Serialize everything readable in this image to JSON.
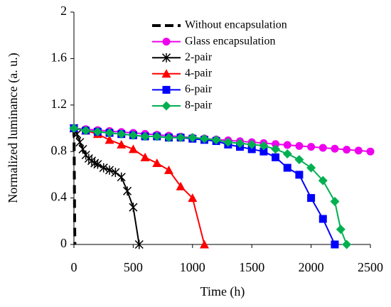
{
  "chart_data": {
    "type": "line",
    "xlabel": "Time (h)",
    "ylabel": "Normalized luminance (a. u.)",
    "xlim": [
      0,
      2500
    ],
    "xticks": [
      0,
      500,
      1000,
      1500,
      2000,
      2500
    ],
    "ylim": [
      0,
      2
    ],
    "yticks": [
      0,
      0.4,
      0.8,
      1.2,
      1.6,
      2
    ],
    "legend": "upper right",
    "series": [
      {
        "name": "Without encapsulation",
        "color": "#000000",
        "marker": "none",
        "dash": true,
        "x": [
          0,
          2,
          4,
          6,
          8
        ],
        "values": [
          1,
          0.8,
          0.5,
          0.2,
          0
        ]
      },
      {
        "name": "Glass encapsulation",
        "color": "#ee00ee",
        "marker": "circle",
        "x": [
          0,
          100,
          200,
          300,
          400,
          500,
          600,
          700,
          800,
          900,
          1000,
          1100,
          1200,
          1300,
          1400,
          1500,
          1600,
          1700,
          1800,
          1900,
          2000,
          2100,
          2200,
          2300,
          2400,
          2500
        ],
        "values": [
          1,
          0.992,
          0.984,
          0.976,
          0.968,
          0.96,
          0.952,
          0.944,
          0.936,
          0.928,
          0.92,
          0.912,
          0.904,
          0.896,
          0.888,
          0.88,
          0.872,
          0.864,
          0.856,
          0.848,
          0.84,
          0.832,
          0.824,
          0.816,
          0.808,
          0.8
        ]
      },
      {
        "name": "2-pair",
        "color": "#000000",
        "marker": "star",
        "x": [
          0,
          25,
          50,
          75,
          100,
          125,
          150,
          175,
          200,
          250,
          300,
          350,
          400,
          450,
          500,
          550
        ],
        "values": [
          1,
          0.95,
          0.88,
          0.82,
          0.77,
          0.74,
          0.72,
          0.7,
          0.69,
          0.66,
          0.64,
          0.62,
          0.58,
          0.46,
          0.32,
          0
        ]
      },
      {
        "name": "4-pair",
        "color": "#ff0000",
        "marker": "triangle",
        "x": [
          0,
          100,
          200,
          300,
          400,
          500,
          600,
          700,
          800,
          900,
          1000,
          1100
        ],
        "values": [
          1,
          0.98,
          0.95,
          0.9,
          0.86,
          0.82,
          0.75,
          0.7,
          0.64,
          0.5,
          0.4,
          0
        ]
      },
      {
        "name": "6-pair",
        "color": "#0000ff",
        "marker": "square",
        "x": [
          0,
          100,
          200,
          300,
          400,
          500,
          600,
          700,
          800,
          900,
          1000,
          1100,
          1200,
          1300,
          1400,
          1500,
          1600,
          1700,
          1800,
          1900,
          2000,
          2100,
          2200
        ],
        "values": [
          1,
          0.98,
          0.97,
          0.96,
          0.95,
          0.94,
          0.93,
          0.93,
          0.92,
          0.92,
          0.91,
          0.9,
          0.89,
          0.86,
          0.84,
          0.82,
          0.8,
          0.75,
          0.66,
          0.6,
          0.4,
          0.22,
          0
        ]
      },
      {
        "name": "8-pair",
        "color": "#00b050",
        "marker": "diamond",
        "x": [
          0,
          100,
          200,
          300,
          400,
          500,
          600,
          700,
          800,
          900,
          1000,
          1100,
          1200,
          1300,
          1400,
          1500,
          1600,
          1700,
          1800,
          1900,
          2000,
          2100,
          2200,
          2250,
          2300
        ],
        "values": [
          1,
          0.98,
          0.97,
          0.96,
          0.95,
          0.94,
          0.93,
          0.93,
          0.92,
          0.92,
          0.92,
          0.91,
          0.9,
          0.88,
          0.87,
          0.86,
          0.85,
          0.82,
          0.78,
          0.73,
          0.66,
          0.55,
          0.37,
          0.13,
          0
        ]
      }
    ]
  }
}
